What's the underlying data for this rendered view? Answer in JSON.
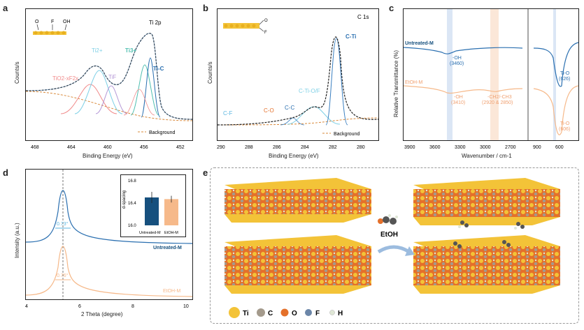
{
  "figure": {
    "panel_letters": [
      "a",
      "b",
      "c",
      "d",
      "e"
    ]
  },
  "panel_a": {
    "region_label": "Ti 2p",
    "ylabel": "Counts/s",
    "xlabel": "Binding Energy (eV)",
    "ticks": [
      "468",
      "464",
      "460",
      "456",
      "452"
    ],
    "peak_labels": {
      "tio": "TiO2-xF2x",
      "ti2": "Ti2+",
      "tif": "TiF",
      "ti3": "Ti3+",
      "tic": "Ti-C"
    },
    "structure_labels": {
      "o": "O",
      "f": "F",
      "oh": "OH"
    },
    "legend": "Background",
    "colors": {
      "envelope": "#222222",
      "fit": "#3a7fc0",
      "tio": "#f08a8a",
      "ti2": "#7ed0e6",
      "tif": "#b497d6",
      "ti3": "#4fbfb0",
      "tic": "#2a6fb0",
      "bg": "#d9893a"
    }
  },
  "panel_b": {
    "region_label": "C 1s",
    "ylabel": "Counts/s",
    "xlabel": "Binding Energy (eV)",
    "ticks": [
      "290",
      "288",
      "286",
      "284",
      "282",
      "280"
    ],
    "peak_labels": {
      "ctio": "C-Ti-O/F",
      "cti": "C-Ti",
      "cf": "C-F",
      "co": "C-O",
      "cc": "C-C"
    },
    "structure_labels": {
      "o": "O",
      "f": "F"
    },
    "legend": "Background"
  },
  "panel_c": {
    "ylabel": "Relative Transmittance (%)",
    "xlabel": "Wavenumber / cm-1",
    "ticks": [
      "3900",
      "3600",
      "3300",
      "3000",
      "2700",
      "900",
      "600"
    ],
    "labels": {
      "untreated": "Untreated-M",
      "etoh": "EtOH-M",
      "oh_top": "-OH",
      "oh_top_val": "(3460)",
      "tio_top": "Ti-O",
      "tio_top_val": "(626)",
      "oh_bot": "-OH",
      "oh_bot_val": "(3410)",
      "ch_bot": "-CH2/-CH3",
      "ch_bot_val": "(2920 & 2850)",
      "tio_bot": "Ti-O",
      "tio_bot_val": "(606)"
    }
  },
  "panel_d": {
    "ylabel": "Intensity (a.u.)",
    "xlabel": "2 Theta (degree)",
    "ticks": [
      "4",
      "6",
      "8",
      "10"
    ],
    "fwhm_top": "0.73°",
    "fwhm_bot": "0.76°",
    "label_top": "Untreated-M",
    "label_bot": "EtOH-M",
    "inset": {
      "ylabel": "d-spacing",
      "yticks": [
        "16.8",
        "16.4",
        "16.0"
      ],
      "categories": [
        "Untreated-M",
        "EtOH-M"
      ],
      "values": [
        16.5,
        16.47
      ],
      "errors": [
        0.1,
        0.06
      ],
      "colors": [
        "#16507e",
        "#f6b98a"
      ]
    }
  },
  "panel_e": {
    "arrow_label": "EtOH",
    "legend": [
      {
        "symbol": "Ti",
        "color": "#f3c338"
      },
      {
        "symbol": "C",
        "color": "#a49a8c"
      },
      {
        "symbol": "O",
        "color": "#e4702a"
      },
      {
        "symbol": "F",
        "color": "#6b86a8"
      },
      {
        "symbol": "H",
        "color": "#dfe7d6"
      }
    ]
  }
}
